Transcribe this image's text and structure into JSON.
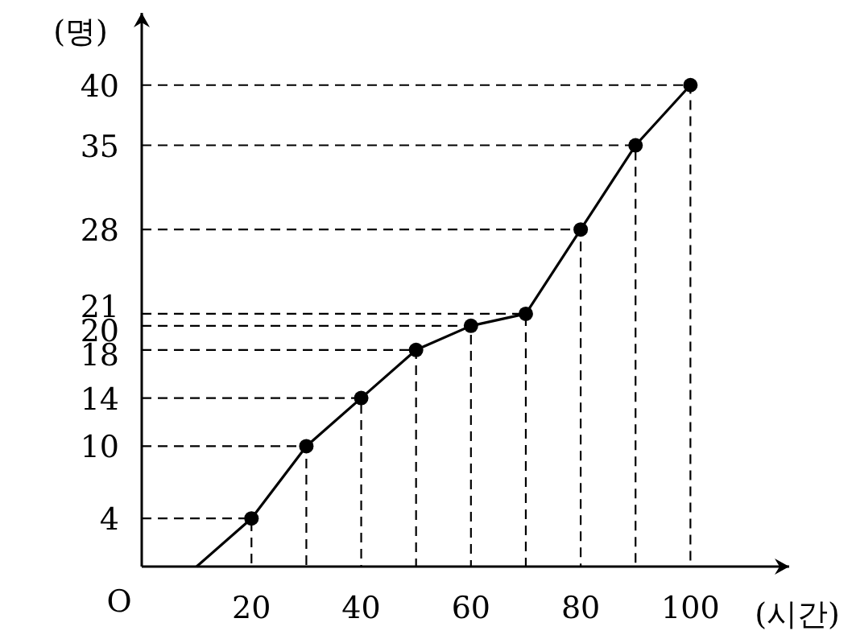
{
  "chart_data": {
    "type": "line",
    "xlabel": "(시간)",
    "ylabel": "(명)",
    "xlim": [
      0,
      118
    ],
    "ylim": [
      0,
      46
    ],
    "xticks": [
      20,
      40,
      60,
      80,
      100
    ],
    "yticks": [
      4,
      10,
      14,
      18,
      20,
      21,
      28,
      35,
      40
    ],
    "annotations": [
      "O"
    ],
    "series": [
      {
        "color": "#000000",
        "marker": "none",
        "x": [
          10,
          20,
          30,
          40,
          50,
          60,
          70,
          80,
          90,
          100
        ],
        "values": [
          0,
          4,
          10,
          14,
          18,
          20,
          21,
          28,
          35,
          40
        ]
      },
      {
        "type": "scatter",
        "color": "#000000",
        "marker": "circle",
        "x": [
          20,
          30,
          40,
          50,
          60,
          70,
          80,
          90,
          100
        ],
        "values": [
          4,
          10,
          14,
          18,
          20,
          21,
          28,
          35,
          40
        ]
      },
      {
        "color": "#000000",
        "line_style": "dashed",
        "x": [
          0,
          20,
          20
        ],
        "values": [
          4,
          4,
          0
        ]
      },
      {
        "color": "#000000",
        "line_style": "dashed",
        "x": [
          0,
          30,
          30
        ],
        "values": [
          10,
          10,
          0
        ]
      },
      {
        "color": "#000000",
        "line_style": "dashed",
        "x": [
          0,
          40,
          40
        ],
        "values": [
          14,
          14,
          0
        ]
      },
      {
        "color": "#000000",
        "line_style": "dashed",
        "x": [
          0,
          50,
          50
        ],
        "values": [
          18,
          18,
          0
        ]
      },
      {
        "color": "#000000",
        "line_style": "dashed",
        "x": [
          0,
          60,
          60
        ],
        "values": [
          20,
          20,
          0
        ]
      },
      {
        "color": "#000000",
        "line_style": "dashed",
        "x": [
          0,
          70,
          70
        ],
        "values": [
          21,
          21,
          0
        ]
      },
      {
        "color": "#000000",
        "line_style": "dashed",
        "x": [
          0,
          80,
          80
        ],
        "values": [
          28,
          28,
          0
        ]
      },
      {
        "color": "#000000",
        "line_style": "dashed",
        "x": [
          0,
          90,
          90
        ],
        "values": [
          35,
          35,
          0
        ]
      },
      {
        "color": "#000000",
        "line_style": "dashed",
        "x": [
          0,
          100,
          100
        ],
        "values": [
          40,
          40,
          0
        ]
      }
    ]
  }
}
